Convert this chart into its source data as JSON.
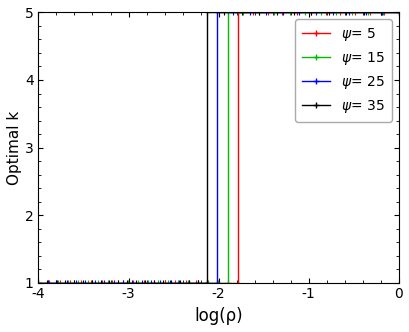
{
  "title": "",
  "xlabel": "log(ρ)",
  "ylabel": "Optimal k",
  "xlim": [
    -4,
    0
  ],
  "ylim": [
    1,
    5
  ],
  "xticks": [
    -4,
    -3,
    -2,
    -1,
    0
  ],
  "yticks": [
    1,
    2,
    3,
    4,
    5
  ],
  "series": [
    {
      "psi": 5,
      "color": "#ff0000",
      "threshold": -1.78
    },
    {
      "psi": 15,
      "color": "#00bb00",
      "threshold": -1.9
    },
    {
      "psi": 25,
      "color": "#0000ff",
      "threshold": -2.02
    },
    {
      "psi": 35,
      "color": "#000000",
      "threshold": -2.13
    }
  ],
  "k_low": 1,
  "k_high": 5,
  "legend_labels": [
    "ψ= 5",
    "ψ= 15",
    "ψ= 25",
    "ψ= 35"
  ],
  "legend_colors": [
    "#ff0000",
    "#00bb00",
    "#0000ff",
    "#000000"
  ]
}
